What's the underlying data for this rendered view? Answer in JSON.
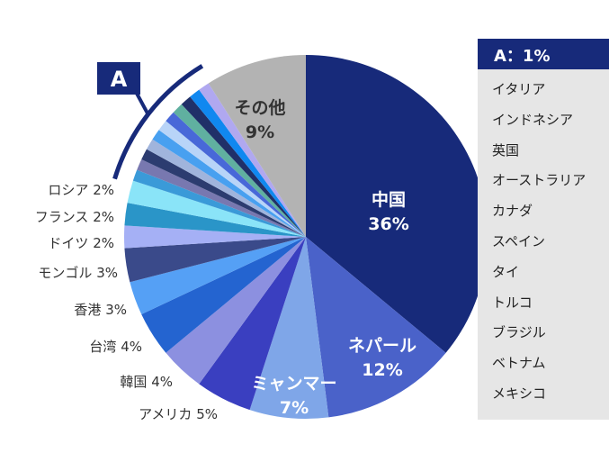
{
  "chart_data": {
    "type": "pie",
    "start": "top",
    "direction": "clockwise",
    "slices": [
      {
        "label": "中国",
        "value": 36,
        "display": "36%",
        "color": "#172a7a",
        "label_inside": true,
        "text_color": "#ffffff"
      },
      {
        "label": "ネパール",
        "value": 12,
        "display": "12%",
        "color": "#4a62c9",
        "label_inside": true,
        "text_color": "#ffffff"
      },
      {
        "label": "ミャンマー",
        "value": 7,
        "display": "7%",
        "color": "#7fa6e8",
        "label_inside": true,
        "text_color": "#ffffff"
      },
      {
        "label": "アメリカ",
        "value": 5,
        "display": "5%",
        "color": "#3a3fc0"
      },
      {
        "label": "韓国",
        "value": 4,
        "display": "4%",
        "color": "#8c90e0"
      },
      {
        "label": "台湾",
        "value": 4,
        "display": "4%",
        "color": "#2464d0"
      },
      {
        "label": "香港",
        "value": 3,
        "display": "3%",
        "color": "#55a0f5"
      },
      {
        "label": "モンゴル",
        "value": 3,
        "display": "3%",
        "color": "#3a4a8a"
      },
      {
        "label": "ドイツ",
        "value": 2,
        "display": "2%",
        "color": "#a5b0f5"
      },
      {
        "label": "フランス",
        "value": 2,
        "display": "2%",
        "color": "#2a95c8"
      },
      {
        "label": "ロシア",
        "value": 2,
        "display": "2%",
        "color": "#8ae4f8"
      },
      {
        "label": "A",
        "value": 1,
        "color": "#3a9ad8"
      },
      {
        "label": "A",
        "value": 1,
        "color": "#7878b0"
      },
      {
        "label": "A",
        "value": 1,
        "color": "#2c3c70"
      },
      {
        "label": "A",
        "value": 1,
        "color": "#a0b4dc"
      },
      {
        "label": "A",
        "value": 1,
        "color": "#48a0f0"
      },
      {
        "label": "A",
        "value": 1,
        "color": "#b8d4f8"
      },
      {
        "label": "A",
        "value": 1,
        "color": "#4868d8"
      },
      {
        "label": "A",
        "value": 1,
        "color": "#60b0a0"
      },
      {
        "label": "A",
        "value": 1,
        "color": "#203068"
      },
      {
        "label": "A",
        "value": 1,
        "color": "#1088f0"
      },
      {
        "label": "A",
        "value": 1,
        "color": "#b0a8f0"
      },
      {
        "label": "その他",
        "value": 9,
        "display": "9%",
        "color": "#b3b3b3",
        "label_inside": true,
        "text_color": "#333333"
      }
    ],
    "group": {
      "marker": "A",
      "title": "A：1%",
      "members": [
        "イタリア",
        "インドネシア",
        "英国",
        "オーストラリア",
        "カナダ",
        "スペイン",
        "タイ",
        "トルコ",
        "ブラジル",
        "ベトナム",
        "メキシコ"
      ]
    },
    "accent_color": "#172a7a"
  }
}
